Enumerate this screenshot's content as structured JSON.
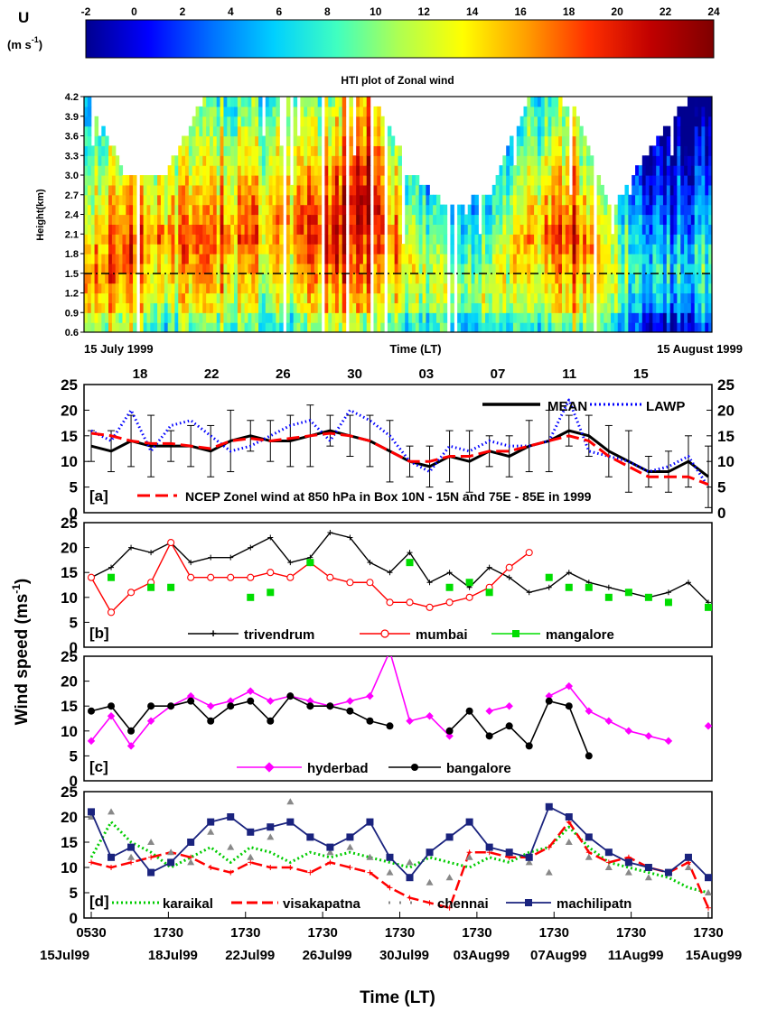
{
  "colorbar": {
    "label_u": "U",
    "label_unit": "(m s",
    "label_unit_sup": "-1",
    "label_unit_end": ")",
    "ticks": [
      "-2",
      "0",
      "2",
      "4",
      "6",
      "8",
      "10",
      "12",
      "14",
      "16",
      "18",
      "20",
      "22",
      "24"
    ],
    "range": [
      -2,
      24
    ],
    "colors": [
      "#00008f",
      "#0000ff",
      "#0070ff",
      "#00d0ff",
      "#40ffc0",
      "#b0ff50",
      "#ffff00",
      "#ffa000",
      "#ff3000",
      "#c00000",
      "#7f0000"
    ]
  },
  "hti": {
    "title": "HTI plot of Zonal wind",
    "ylabel": "Height(km)",
    "yticks": [
      "0.6",
      "0.9",
      "1.2",
      "1.5",
      "1.8",
      "2.1",
      "2.4",
      "2.7",
      "3.0",
      "3.3",
      "3.6",
      "3.9",
      "4.2"
    ],
    "ylim": [
      0.6,
      4.2
    ],
    "reference_height": 1.5,
    "left_date": "15 July 1999",
    "center_label": "Time (LT)",
    "right_date": "15 August 1999",
    "top_ticks": [
      "18",
      "22",
      "26",
      "30",
      "03",
      "07",
      "11",
      "15"
    ]
  },
  "panels": {
    "ylabel_main": "Wind speed (ms",
    "ylabel_sup": "-1",
    "ylabel_end": ")",
    "yticks": [
      "0",
      "5",
      "10",
      "15",
      "20",
      "25"
    ],
    "a": {
      "tag": "[a]",
      "legend_mean": "MEAN",
      "legend_lawp": "LAWP",
      "legend_ncep": "NCEP Zonel wind at 850 hPa in Box 10N - 15N and 75E - 85E in 1999"
    },
    "b": {
      "tag": "[b]",
      "legend": [
        "trivendrum",
        "mumbai",
        "mangalore"
      ]
    },
    "c": {
      "tag": "[c]",
      "legend": [
        "hyderbad",
        "bangalore"
      ]
    },
    "d": {
      "tag": "[d]",
      "legend": [
        "karaikal",
        "visakapatna",
        "chennai",
        "machilipatn"
      ]
    },
    "xticks_time": [
      "0530",
      "1730",
      "1730",
      "1730",
      "1730",
      "1730",
      "1730",
      "1730",
      "1730"
    ],
    "xticks_date": [
      "15Jul99",
      "18Jul99",
      "22Jul99",
      "26Jul99",
      "30Jul99",
      "03Aug99",
      "07Aug99",
      "11Aug99",
      "15Aug99"
    ],
    "xlabel": "Time (LT)"
  },
  "chart_data": [
    {
      "type": "heatmap",
      "title": "HTI plot of Zonal wind",
      "ylabel": "Height(km)",
      "xlabel": "Time (LT)",
      "ylim": [
        0.6,
        4.2
      ],
      "zlim": [
        -2,
        24
      ],
      "columns": [
        {
          "day": 0,
          "top": 4.2,
          "peak": 17,
          "peak_h": 1.3
        },
        {
          "day": 2,
          "top": 2.9,
          "peak": 20,
          "peak_h": 1.8
        },
        {
          "day": 4,
          "top": 3.0,
          "peak": 16,
          "peak_h": 2.0
        },
        {
          "day": 6,
          "top": 4.2,
          "peak": 19,
          "peak_h": 1.9
        },
        {
          "day": 8,
          "top": 4.2,
          "peak": 17,
          "peak_h": 2.1
        },
        {
          "day": 10,
          "top": 4.2,
          "peak": 16,
          "peak_h": 2.2
        },
        {
          "day": 12,
          "top": 4.2,
          "peak": 21,
          "peak_h": 2.0
        },
        {
          "day": 14,
          "top": 4.2,
          "peak": 23,
          "peak_h": 2.6
        },
        {
          "day": 16,
          "top": 3.0,
          "peak": 14,
          "peak_h": 1.5
        },
        {
          "day": 18,
          "top": 2.4,
          "peak": 11,
          "peak_h": 1.2
        },
        {
          "day": 20,
          "top": 2.7,
          "peak": 12,
          "peak_h": 1.2
        },
        {
          "day": 22,
          "top": 4.2,
          "peak": 16,
          "peak_h": 2.1
        },
        {
          "day": 24,
          "top": 4.0,
          "peak": 20,
          "peak_h": 2.0
        },
        {
          "day": 26,
          "top": 2.4,
          "peak": 12,
          "peak_h": 1.5
        },
        {
          "day": 28,
          "top": 3.4,
          "peak": 6,
          "peak_h": 1.5
        },
        {
          "day": 30,
          "top": 4.2,
          "peak": 8,
          "peak_h": 1.5
        }
      ]
    },
    {
      "type": "line",
      "panel": "a",
      "x_days": [
        0,
        1,
        2,
        3,
        4,
        5,
        6,
        7,
        8,
        9,
        10,
        11,
        12,
        13,
        14,
        15,
        16,
        17,
        18,
        19,
        20,
        21,
        22,
        23,
        24,
        25,
        26,
        27,
        28,
        29,
        30,
        31
      ],
      "series": [
        {
          "name": "MEAN",
          "values": [
            13,
            12,
            14,
            13,
            13,
            13,
            12,
            14,
            15,
            14,
            14,
            15,
            16,
            15,
            14,
            12,
            10,
            9,
            11,
            10,
            12,
            11,
            13,
            14,
            16,
            15,
            12,
            10,
            8,
            8,
            10,
            7
          ]
        },
        {
          "name": "LAWP",
          "values": [
            16,
            14,
            20,
            12,
            17,
            18,
            15,
            12,
            13,
            15,
            17,
            18,
            14,
            20,
            18,
            15,
            10,
            8,
            13,
            12,
            14,
            13,
            13,
            14,
            22,
            12,
            11,
            10,
            8,
            9,
            11,
            5
          ]
        },
        {
          "name": "NCEP Zonel wind at 850 hPa in Box 10N - 15N and 75E - 85E in 1999",
          "values": [
            15.5,
            15,
            14,
            13.5,
            13.5,
            13,
            12.5,
            14,
            14.5,
            14,
            14.5,
            15,
            15.5,
            15,
            14,
            12,
            10,
            10,
            11,
            11,
            12,
            12,
            13,
            14,
            15,
            14,
            11,
            9,
            7,
            7,
            7,
            5.5
          ]
        }
      ],
      "ylim": [
        0,
        25
      ]
    },
    {
      "type": "line",
      "panel": "b",
      "x_days": [
        0,
        1,
        2,
        3,
        4,
        5,
        6,
        7,
        8,
        9,
        10,
        11,
        12,
        13,
        14,
        15,
        16,
        17,
        18,
        19,
        20,
        21,
        22,
        23,
        24,
        25,
        26,
        27,
        28,
        29,
        30,
        31
      ],
      "series": [
        {
          "name": "trivendrum",
          "values": [
            14,
            16,
            20,
            19,
            21,
            17,
            18,
            18,
            20,
            22,
            17,
            18,
            23,
            22,
            17,
            15,
            19,
            13,
            15,
            12,
            16,
            14,
            11,
            12,
            15,
            13,
            12,
            11,
            10,
            11,
            13,
            9
          ]
        },
        {
          "name": "mumbai",
          "values": [
            14,
            7,
            11,
            13,
            21,
            14,
            14,
            14,
            14,
            15,
            14,
            17,
            14,
            13,
            13,
            9,
            9,
            8,
            9,
            10,
            12,
            16,
            19,
            null,
            null,
            null,
            null,
            null,
            null,
            null,
            null,
            null
          ]
        },
        {
          "name": "mangalore",
          "values": [
            null,
            14,
            null,
            12,
            12,
            null,
            null,
            null,
            10,
            11,
            null,
            17,
            null,
            null,
            null,
            null,
            17,
            null,
            12,
            13,
            11,
            null,
            null,
            14,
            12,
            12,
            10,
            11,
            10,
            9,
            null,
            8
          ]
        }
      ],
      "ylim": [
        0,
        25
      ]
    },
    {
      "type": "line",
      "panel": "c",
      "x_days": [
        0,
        1,
        2,
        3,
        4,
        5,
        6,
        7,
        8,
        9,
        10,
        11,
        12,
        13,
        14,
        15,
        16,
        17,
        18,
        19,
        20,
        21,
        22,
        23,
        24,
        25,
        26,
        27,
        28,
        29,
        30,
        31
      ],
      "series": [
        {
          "name": "hyderbad",
          "values": [
            8,
            13,
            7,
            12,
            15,
            17,
            15,
            16,
            18,
            16,
            17,
            16,
            15,
            16,
            17,
            26,
            12,
            13,
            9,
            null,
            14,
            15,
            null,
            17,
            19,
            14,
            12,
            10,
            9,
            8,
            null,
            11
          ]
        },
        {
          "name": "bangalore",
          "values": [
            14,
            15,
            10,
            15,
            15,
            16,
            12,
            15,
            16,
            12,
            17,
            15,
            15,
            14,
            12,
            11,
            null,
            null,
            10,
            14,
            9,
            11,
            7,
            16,
            15,
            5,
            null,
            null,
            null,
            null,
            null,
            null
          ]
        }
      ],
      "ylim": [
        0,
        25
      ]
    },
    {
      "type": "line",
      "panel": "d",
      "x_days": [
        0,
        1,
        2,
        3,
        4,
        5,
        6,
        7,
        8,
        9,
        10,
        11,
        12,
        13,
        14,
        15,
        16,
        17,
        18,
        19,
        20,
        21,
        22,
        23,
        24,
        25,
        26,
        27,
        28,
        29,
        30,
        31
      ],
      "series": [
        {
          "name": "karaikal",
          "values": [
            12,
            19,
            15,
            13,
            10,
            12,
            14,
            11,
            14,
            13,
            11,
            13,
            12,
            13,
            12,
            11,
            10,
            12,
            11,
            10,
            12,
            11,
            13,
            14,
            18,
            14,
            11,
            10,
            9,
            8,
            6,
            5
          ]
        },
        {
          "name": "visakapatna",
          "values": [
            11,
            10,
            11,
            12,
            13,
            12,
            10,
            9,
            11,
            10,
            10,
            9,
            11,
            10,
            9,
            6,
            4,
            3,
            2,
            13,
            13,
            12,
            12,
            14,
            19,
            13,
            11,
            12,
            10,
            9,
            11,
            2
          ]
        },
        {
          "name": "chennai",
          "values": [
            20,
            21,
            12,
            15,
            13,
            11,
            17,
            14,
            12,
            16,
            23,
            16,
            13,
            14,
            12,
            9,
            11,
            7,
            8,
            12,
            14,
            13,
            11,
            9,
            15,
            12,
            10,
            9,
            8,
            9,
            10,
            5
          ]
        },
        {
          "name": "machilipatn",
          "values": [
            21,
            12,
            14,
            9,
            11,
            15,
            19,
            20,
            17,
            18,
            19,
            16,
            14,
            16,
            19,
            12,
            8,
            13,
            16,
            19,
            14,
            13,
            12,
            22,
            20,
            16,
            13,
            11,
            10,
            9,
            12,
            8
          ]
        }
      ],
      "ylim": [
        0,
        25
      ]
    }
  ]
}
